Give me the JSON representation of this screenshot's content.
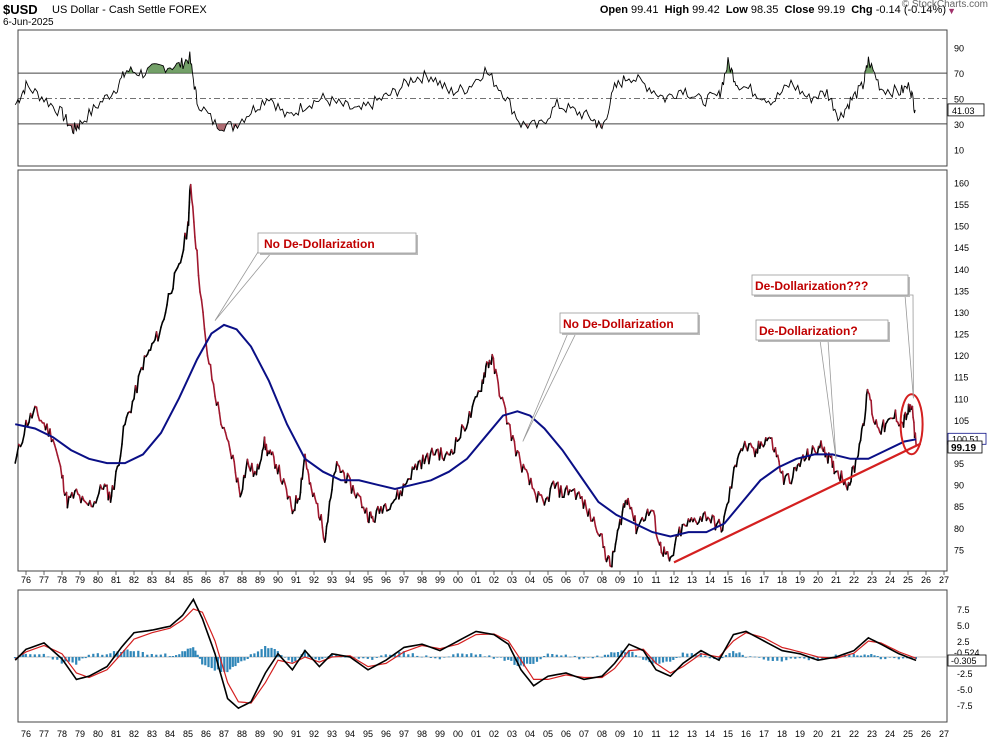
{
  "header": {
    "symbol": "$USD",
    "name": "US Dollar - Cash Settle",
    "exchange": "FOREX",
    "date": "6-Jun-2025",
    "open_label": "Open",
    "open": "99.41",
    "high_label": "High",
    "high": "99.42",
    "low_label": "Low",
    "low": "98.35",
    "close_label": "Close",
    "close": "99.19",
    "chg_label": "Chg",
    "chg": "-0.14 (-0.14%)",
    "watermark": "© StockCharts.com"
  },
  "colors": {
    "price_up": "#000000",
    "price_down": "#a0182e",
    "moving_average": "#0a0f86",
    "trendline": "#d42020",
    "annotation_text": "#c00000",
    "rsi_overbought_fill": "#5a8f4e",
    "rsi_oversold_fill": "#a0525a",
    "macd_histogram": "#2f86b8",
    "macd_line": "#000000",
    "macd_signal": "#d42020"
  },
  "chart_data": [
    {
      "type": "line",
      "panel": "rsi",
      "y_ticks": [
        90,
        70,
        50,
        30,
        10
      ],
      "ylim": [
        0,
        100
      ],
      "reference_lines": [
        70,
        50,
        30
      ],
      "last_value_label": "41.03",
      "x": [
        1975.4,
        1976.0,
        1977.0,
        1978.0,
        1978.6,
        1979.0,
        1980.0,
        1981.0,
        1981.6,
        1982.5,
        1983.5,
        1984.5,
        1985.1,
        1985.5,
        1986.5,
        1987.5,
        1988.5,
        1989.5,
        1990.5,
        1991.5,
        1992.5,
        1993.5,
        1994.5,
        1995.5,
        1996.5,
        1997.5,
        1998.5,
        1999.5,
        2000.5,
        2001.5,
        2002.5,
        2003.5,
        2004.5,
        2005.5,
        2006.5,
        2007.5,
        2008.0,
        2008.7,
        2009.5,
        2010.5,
        2011.5,
        2012.5,
        2013.5,
        2014.5,
        2015.0,
        2015.5,
        2016.5,
        2017.5,
        2018.5,
        2019.5,
        2020.5,
        2021.2,
        2021.8,
        2022.5,
        2022.8,
        2023.5,
        2024.5,
        2025.1,
        2025.4
      ],
      "values": [
        45,
        60,
        50,
        38,
        25,
        30,
        45,
        58,
        72,
        70,
        75,
        76,
        82,
        48,
        30,
        28,
        40,
        52,
        35,
        45,
        50,
        45,
        40,
        48,
        55,
        66,
        68,
        55,
        58,
        72,
        55,
        30,
        28,
        45,
        40,
        34,
        26,
        58,
        68,
        60,
        50,
        58,
        48,
        52,
        78,
        62,
        55,
        48,
        62,
        50,
        55,
        35,
        48,
        60,
        80,
        58,
        55,
        60,
        41.03
      ]
    },
    {
      "type": "line",
      "panel": "price",
      "x_ticks": [
        "76",
        "77",
        "78",
        "79",
        "80",
        "81",
        "82",
        "83",
        "84",
        "85",
        "86",
        "87",
        "88",
        "89",
        "90",
        "91",
        "92",
        "93",
        "94",
        "95",
        "96",
        "97",
        "98",
        "99",
        "00",
        "01",
        "02",
        "03",
        "04",
        "05",
        "06",
        "07",
        "08",
        "09",
        "10",
        "11",
        "12",
        "13",
        "14",
        "15",
        "16",
        "17",
        "18",
        "19",
        "20",
        "21",
        "22",
        "23",
        "24",
        "25",
        "26",
        "27"
      ],
      "y_ticks": [
        160,
        155,
        150,
        145,
        140,
        135,
        130,
        125,
        120,
        115,
        110,
        105,
        100,
        95,
        90,
        85,
        80,
        75
      ],
      "ylim": [
        70,
        161.5
      ],
      "last_price_label": "99.19",
      "ma_last_label": "100.51",
      "series": [
        {
          "role": "price",
          "x": [
            1975.4,
            1976.0,
            1976.5,
            1977.0,
            1977.5,
            1978.0,
            1978.3,
            1978.8,
            1979.3,
            1979.8,
            1980.3,
            1980.7,
            1981.0,
            1981.5,
            1982.0,
            1982.5,
            1983.0,
            1983.5,
            1984.0,
            1984.5,
            1985.0,
            1985.15,
            1985.5,
            1986.0,
            1986.5,
            1987.0,
            1987.5,
            1987.9,
            1988.3,
            1988.8,
            1989.2,
            1989.5,
            1989.9,
            1990.4,
            1990.8,
            1991.2,
            1991.5,
            1991.8,
            1992.2,
            1992.6,
            1992.8,
            1993.2,
            1993.6,
            1994.0,
            1994.5,
            1995.0,
            1995.3,
            1995.8,
            1996.3,
            1996.8,
            1997.3,
            1997.8,
            1998.3,
            1998.8,
            1999.3,
            1999.8,
            2000.3,
            2000.8,
            2001.3,
            2001.6,
            2001.9,
            2002.3,
            2002.8,
            2003.3,
            2003.8,
            2004.3,
            2004.8,
            2005.3,
            2005.8,
            2006.3,
            2006.8,
            2007.3,
            2007.8,
            2008.2,
            2008.5,
            2008.8,
            2009.2,
            2009.5,
            2009.9,
            2010.4,
            2010.8,
            2011.2,
            2011.5,
            2011.8,
            2012.3,
            2012.8,
            2013.3,
            2013.8,
            2014.3,
            2014.7,
            2015.2,
            2015.6,
            2016.0,
            2016.5,
            2016.9,
            2017.3,
            2017.7,
            2018.1,
            2018.6,
            2019.0,
            2019.5,
            2019.9,
            2020.3,
            2020.6,
            2020.9,
            2021.3,
            2021.7,
            2022.1,
            2022.5,
            2022.8,
            2023.1,
            2023.5,
            2023.9,
            2024.3,
            2024.7,
            2025.0,
            2025.2,
            2025.45
          ],
          "values": [
            95,
            104,
            107,
            104,
            101,
            92,
            86,
            88,
            85,
            86,
            90,
            87,
            92,
            104,
            110,
            118,
            122,
            126,
            135,
            140,
            150,
            160,
            143,
            122,
            111,
            102,
            96,
            88,
            95,
            92,
            100,
            97,
            95,
            89,
            84,
            88,
            97,
            89,
            85,
            78,
            83,
            94,
            93,
            90,
            87,
            83,
            82,
            85,
            86,
            88,
            92,
            95,
            96,
            98,
            96,
            99,
            103,
            107,
            113,
            118,
            119,
            112,
            104,
            97,
            92,
            88,
            85,
            90,
            88,
            89,
            87,
            83,
            80,
            74,
            71,
            77,
            85,
            87,
            80,
            83,
            84,
            76,
            74,
            72,
            79,
            81,
            82,
            83,
            81,
            80,
            90,
            98,
            99,
            97,
            100,
            101,
            97,
            91,
            92,
            95,
            97,
            98,
            99,
            96,
            94,
            92,
            90,
            95,
            104,
            112,
            105,
            103,
            104,
            106,
            104,
            107,
            108,
            99.19
          ]
        },
        {
          "role": "moving_average",
          "x": [
            1975.4,
            1976.5,
            1977.5,
            1978.5,
            1979.5,
            1980.5,
            1981.5,
            1982.5,
            1983.5,
            1984.5,
            1985.5,
            1986.3,
            1987.0,
            1987.7,
            1988.5,
            1989.5,
            1990.5,
            1991.5,
            1992.5,
            1993.5,
            1994.5,
            1995.5,
            1996.5,
            1997.5,
            1998.5,
            1999.5,
            2000.5,
            2001.5,
            2002.5,
            2003.3,
            2004.0,
            2004.8,
            2005.8,
            2006.8,
            2007.8,
            2008.8,
            2009.8,
            2010.8,
            2011.8,
            2012.8,
            2013.8,
            2014.8,
            2015.8,
            2016.8,
            2017.8,
            2018.8,
            2019.8,
            2020.8,
            2021.8,
            2022.8,
            2023.8,
            2024.8,
            2025.45
          ],
          "values": [
            104,
            103,
            101,
            98,
            96,
            95,
            95,
            97,
            102,
            110,
            119,
            125,
            127,
            126,
            122,
            114,
            104,
            96,
            93,
            91,
            91,
            90,
            89,
            90,
            91,
            93,
            96,
            101,
            106,
            107,
            106,
            103,
            98,
            92,
            86,
            83,
            81,
            79,
            78,
            79,
            79,
            81,
            86,
            91,
            94,
            96,
            97,
            97,
            96,
            96,
            98,
            100,
            100.51
          ]
        },
        {
          "role": "trendline",
          "x": [
            2012.0,
            2025.7
          ],
          "values": [
            72,
            99.5
          ]
        }
      ],
      "annotations": [
        {
          "text": "No De-Dollarization",
          "target_x": 1986.5,
          "target_y": 128
        },
        {
          "text": "No De-Dollarization",
          "target_x": 2003.6,
          "target_y": 100
        },
        {
          "text": "De-Dollarization?",
          "target_x": 2021.0,
          "target_y": 96
        },
        {
          "text": "De-Dollarization???",
          "target_x": 2025.3,
          "target_y": 110
        }
      ]
    },
    {
      "type": "line",
      "panel": "macd",
      "y_ticks": [
        "7.5",
        "5.0",
        "2.5",
        "0.0",
        "-2.5",
        "-5.0",
        "-7.5"
      ],
      "ylim": [
        -9.5,
        9.5
      ],
      "macd_value_label": "-0.524",
      "histogram_value_label": "-0.305",
      "x": [
        1975.4,
        1976.0,
        1977.0,
        1978.0,
        1978.8,
        1979.5,
        1980.5,
        1981.3,
        1982.0,
        1983.0,
        1984.0,
        1984.7,
        1985.3,
        1985.8,
        1986.5,
        1987.2,
        1987.8,
        1988.5,
        1989.3,
        1990.0,
        1990.8,
        1991.5,
        1992.3,
        1993.0,
        1994.0,
        1995.0,
        1996.0,
        1997.0,
        1998.0,
        1999.0,
        2000.0,
        2001.0,
        2002.0,
        2002.8,
        2003.5,
        2004.2,
        2005.0,
        2006.0,
        2007.0,
        2008.0,
        2008.7,
        2009.5,
        2010.3,
        2011.0,
        2011.8,
        2012.5,
        2013.5,
        2014.5,
        2015.3,
        2016.0,
        2017.0,
        2018.0,
        2019.0,
        2020.0,
        2021.0,
        2022.0,
        2022.8,
        2023.5,
        2024.5,
        2025.45
      ],
      "macd": [
        -0.5,
        1.2,
        2.2,
        -0.3,
        -3.5,
        -3.0,
        -1.5,
        1.5,
        3.8,
        4.2,
        4.8,
        6.5,
        9.0,
        6.0,
        0.5,
        -6.5,
        -8.0,
        -7.0,
        -2.5,
        0.5,
        -2.0,
        1.0,
        -1.5,
        0.5,
        0.0,
        -2.0,
        -0.5,
        1.5,
        2.0,
        1.0,
        2.5,
        4.0,
        3.5,
        2.0,
        -2.0,
        -4.5,
        -3.0,
        -2.5,
        -3.5,
        -3.0,
        -1.0,
        2.0,
        1.0,
        -2.0,
        -3.0,
        -1.0,
        1.0,
        -0.5,
        3.5,
        4.0,
        2.5,
        1.0,
        0.5,
        -0.5,
        0.0,
        1.0,
        3.0,
        2.0,
        0.5,
        -0.524
      ],
      "signal": [
        -0.3,
        0.8,
        1.8,
        0.5,
        -2.5,
        -3.2,
        -2.0,
        0.5,
        2.8,
        3.8,
        4.5,
        5.8,
        7.5,
        7.0,
        2.5,
        -4.0,
        -7.0,
        -7.2,
        -4.0,
        -0.5,
        -1.0,
        0.0,
        -0.8,
        0.0,
        0.2,
        -1.5,
        -1.0,
        0.8,
        1.8,
        1.3,
        2.0,
        3.5,
        3.6,
        2.5,
        -0.5,
        -3.5,
        -3.5,
        -2.8,
        -3.2,
        -3.2,
        -1.8,
        1.0,
        1.2,
        -1.0,
        -2.5,
        -1.5,
        0.5,
        0.0,
        2.5,
        3.8,
        3.0,
        1.5,
        0.8,
        0.0,
        -0.2,
        0.6,
        2.5,
        2.2,
        0.8,
        -0.2
      ],
      "histogram": [
        -0.2,
        0.4,
        0.4,
        -0.8,
        -1.0,
        0.2,
        0.5,
        1.0,
        1.0,
        0.4,
        0.3,
        0.7,
        1.5,
        -1.0,
        -2.0,
        -2.5,
        -1.0,
        0.2,
        1.5,
        1.0,
        -1.0,
        1.0,
        -0.7,
        0.5,
        -0.2,
        -0.5,
        0.5,
        0.7,
        0.2,
        -0.3,
        0.5,
        0.5,
        -0.1,
        -0.5,
        -1.5,
        -1.0,
        0.5,
        0.3,
        -0.3,
        0.2,
        0.8,
        1.0,
        -0.2,
        -1.0,
        -0.5,
        0.5,
        0.5,
        -0.5,
        1.0,
        0.2,
        -0.5,
        -0.5,
        -0.3,
        -0.5,
        0.2,
        0.4,
        0.5,
        -0.2,
        -0.3,
        -0.305
      ]
    }
  ]
}
